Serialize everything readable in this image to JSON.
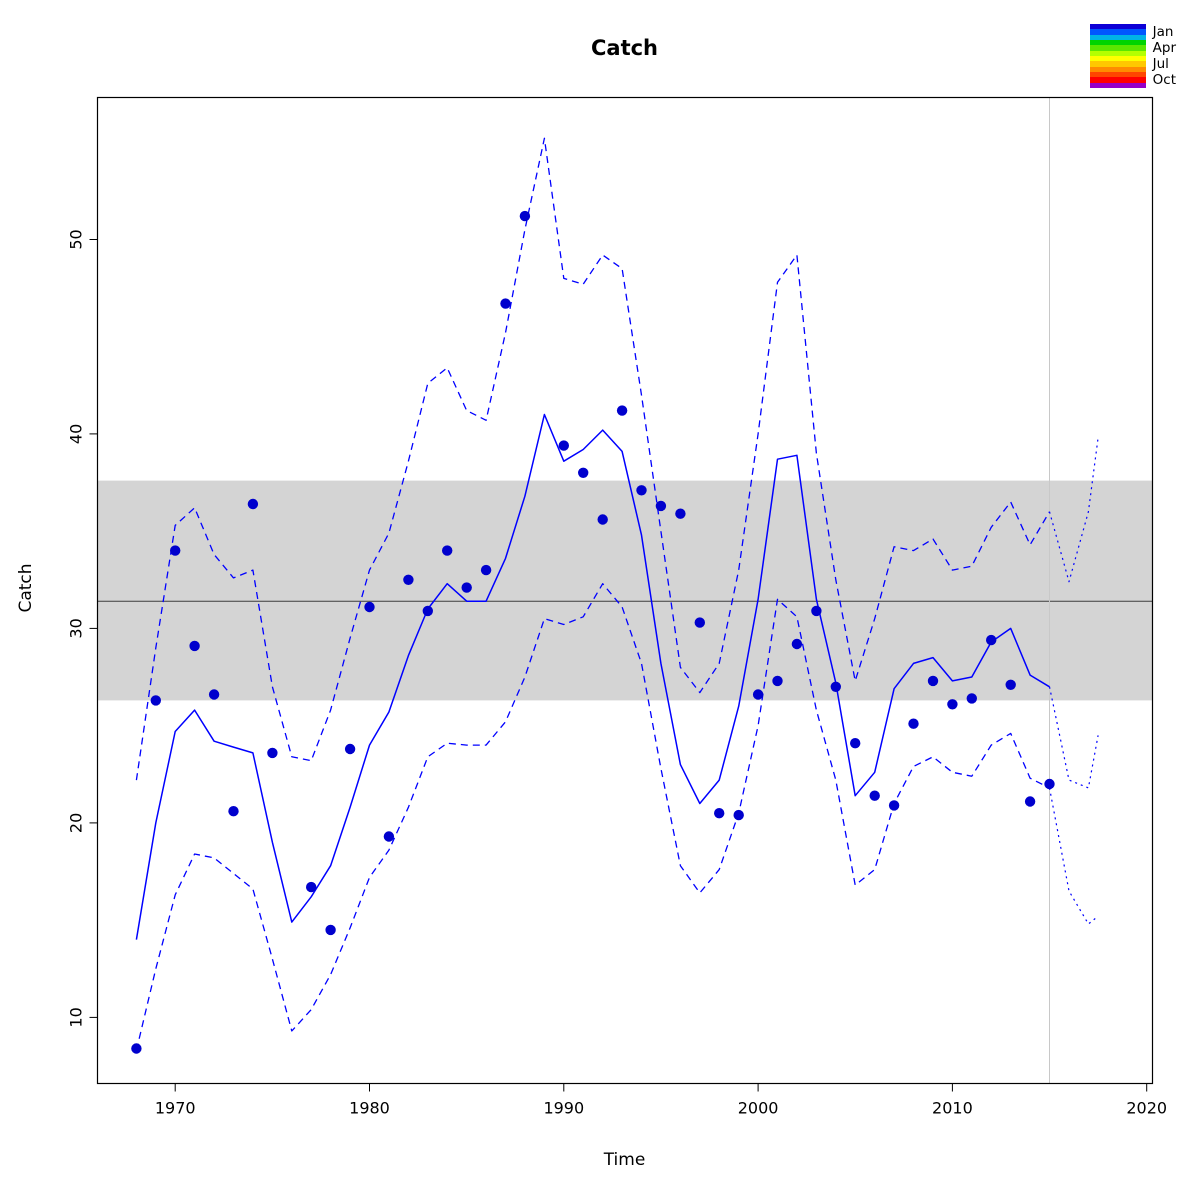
{
  "chart_data": {
    "type": "line",
    "title": "Catch",
    "xlabel": "Time",
    "ylabel": "Catch",
    "xlim": [
      1966.0,
      2020.3
    ],
    "ylim": [
      6.6,
      57.3
    ],
    "x_ticks": [
      1970,
      1980,
      1990,
      2000,
      2010,
      2020
    ],
    "y_ticks": [
      10,
      20,
      30,
      40,
      50
    ],
    "grid": false,
    "forecast_start": 2015,
    "reference_band": {
      "ymin": 26.3,
      "ymax": 37.6,
      "center": 31.4
    },
    "colors": {
      "line": "#0000ff",
      "points": "#0000cd",
      "band": "#d4d4d4",
      "band_line": "#3c3c3c",
      "divider": "#c8c8c8",
      "frame": "#000000"
    },
    "series": [
      {
        "name": "estimate",
        "style": "solid",
        "color": "#0000ff",
        "width": 1.5,
        "x": [
          1968,
          1969,
          1970,
          1971,
          1972,
          1973,
          1974,
          1975,
          1976,
          1977,
          1978,
          1979,
          1980,
          1981,
          1982,
          1983,
          1984,
          1985,
          1986,
          1987,
          1988,
          1989,
          1990,
          1991,
          1992,
          1993,
          1994,
          1995,
          1996,
          1997,
          1998,
          1999,
          2000,
          2001,
          2002,
          2003,
          2004,
          2005,
          2006,
          2007,
          2008,
          2009,
          2010,
          2011,
          2012,
          2013,
          2014,
          2015
        ],
        "y": [
          14.0,
          20.0,
          24.7,
          25.8,
          24.2,
          23.9,
          23.6,
          19.0,
          14.9,
          16.2,
          17.8,
          20.8,
          24.0,
          25.7,
          28.6,
          31.0,
          32.3,
          31.4,
          31.4,
          33.6,
          36.8,
          41.0,
          38.6,
          39.2,
          40.2,
          39.1,
          34.8,
          28.2,
          23.0,
          21.0,
          22.2,
          26.0,
          31.5,
          38.7,
          38.9,
          31.5,
          27.2,
          21.4,
          22.6,
          26.9,
          28.2,
          28.5,
          27.3,
          27.5,
          29.3,
          30.0,
          27.6,
          27.0
        ]
      },
      {
        "name": "upper-confidence",
        "style": "dashed",
        "color": "#0000ff",
        "width": 1.3,
        "x": [
          1968,
          1969,
          1970,
          1971,
          1972,
          1973,
          1974,
          1975,
          1976,
          1977,
          1978,
          1979,
          1980,
          1981,
          1982,
          1983,
          1984,
          1985,
          1986,
          1987,
          1988,
          1989,
          1990,
          1991,
          1992,
          1993,
          1994,
          1995,
          1996,
          1997,
          1998,
          1999,
          2000,
          2001,
          2002,
          2003,
          2004,
          2005,
          2006,
          2007,
          2008,
          2009,
          2010,
          2011,
          2012,
          2013,
          2014,
          2015
        ],
        "y": [
          22.2,
          29.0,
          35.3,
          36.2,
          33.8,
          32.6,
          33.0,
          27.0,
          23.4,
          23.2,
          25.8,
          29.5,
          33.0,
          34.9,
          38.6,
          42.6,
          43.4,
          41.2,
          40.7,
          45.2,
          50.5,
          55.2,
          48.0,
          47.7,
          49.2,
          48.5,
          42.0,
          35.0,
          28.0,
          26.7,
          28.2,
          33.0,
          40.0,
          47.8,
          49.2,
          39.0,
          32.5,
          27.3,
          30.5,
          34.2,
          34.0,
          34.6,
          33.0,
          33.2,
          35.2,
          36.5,
          34.3,
          36.0
        ]
      },
      {
        "name": "lower-confidence",
        "style": "dashed",
        "color": "#0000ff",
        "width": 1.3,
        "x": [
          1968,
          1969,
          1970,
          1971,
          1972,
          1973,
          1974,
          1975,
          1976,
          1977,
          1978,
          1979,
          1980,
          1981,
          1982,
          1983,
          1984,
          1985,
          1986,
          1987,
          1988,
          1989,
          1990,
          1991,
          1992,
          1993,
          1994,
          1995,
          1996,
          1997,
          1998,
          1999,
          2000,
          2001,
          2002,
          2003,
          2004,
          2005,
          2006,
          2007,
          2008,
          2009,
          2010,
          2011,
          2012,
          2013,
          2014,
          2015
        ],
        "y": [
          8.3,
          12.5,
          16.3,
          18.4,
          18.2,
          17.4,
          16.6,
          13.0,
          9.3,
          10.4,
          12.2,
          14.6,
          17.2,
          18.6,
          20.8,
          23.4,
          24.1,
          24.0,
          24.0,
          25.2,
          27.5,
          30.5,
          30.2,
          30.6,
          32.3,
          31.1,
          28.2,
          22.8,
          17.8,
          16.4,
          17.6,
          20.5,
          25.0,
          31.5,
          30.6,
          25.8,
          22.2,
          16.8,
          17.6,
          21.0,
          22.9,
          23.4,
          22.6,
          22.4,
          24.0,
          24.6,
          22.3,
          21.8
        ]
      },
      {
        "name": "forecast-upper",
        "style": "dotted",
        "color": "#0000ff",
        "width": 1.2,
        "x": [
          2015,
          2016,
          2017,
          2017.5
        ],
        "y": [
          36.0,
          32.4,
          36.0,
          39.8
        ]
      },
      {
        "name": "forecast-estimate",
        "style": "dotted",
        "color": "#0000ff",
        "width": 1.2,
        "x": [
          2015,
          2016,
          2017,
          2017.5
        ],
        "y": [
          27.0,
          22.2,
          21.8,
          24.5
        ]
      },
      {
        "name": "forecast-lower",
        "style": "dotted",
        "color": "#0000ff",
        "width": 1.2,
        "x": [
          2015,
          2016,
          2017,
          2017.5
        ],
        "y": [
          21.8,
          16.5,
          14.8,
          15.2
        ]
      }
    ],
    "observations": {
      "name": "observed-catch",
      "color": "#0000cd",
      "points": [
        [
          1968,
          8.4
        ],
        [
          1969,
          26.3
        ],
        [
          1970,
          34.0
        ],
        [
          1971,
          29.1
        ],
        [
          1972,
          26.6
        ],
        [
          1973,
          20.6
        ],
        [
          1974,
          36.4
        ],
        [
          1975,
          23.6
        ],
        [
          1977,
          16.7
        ],
        [
          1978,
          14.5
        ],
        [
          1979,
          23.8
        ],
        [
          1980,
          31.1
        ],
        [
          1981,
          19.3
        ],
        [
          1982,
          32.5
        ],
        [
          1983,
          30.9
        ],
        [
          1984,
          34.0
        ],
        [
          1985,
          32.1
        ],
        [
          1986,
          33.0
        ],
        [
          1987,
          46.7
        ],
        [
          1988,
          51.2
        ],
        [
          1990,
          39.4
        ],
        [
          1991,
          38.0
        ],
        [
          1992,
          35.6
        ],
        [
          1993,
          41.2
        ],
        [
          1994,
          37.1
        ],
        [
          1995,
          36.3
        ],
        [
          1996,
          35.9
        ],
        [
          1997,
          30.3
        ],
        [
          1998,
          20.5
        ],
        [
          1999,
          20.4
        ],
        [
          2000,
          26.6
        ],
        [
          2001,
          27.3
        ],
        [
          2002,
          29.2
        ],
        [
          2003,
          30.9
        ],
        [
          2004,
          27.0
        ],
        [
          2005,
          24.1
        ],
        [
          2006,
          21.4
        ],
        [
          2007,
          20.9
        ],
        [
          2008,
          25.1
        ],
        [
          2009,
          27.3
        ],
        [
          2010,
          26.1
        ],
        [
          2011,
          26.4
        ],
        [
          2012,
          29.4
        ],
        [
          2013,
          27.1
        ],
        [
          2014,
          21.1
        ],
        [
          2015,
          22.0
        ]
      ]
    },
    "legend": {
      "position": "top-right",
      "labels": [
        "Jan",
        "Apr",
        "Jul",
        "Oct"
      ],
      "month_colors": [
        "#0d00d6",
        "#0057ff",
        "#00b4e6",
        "#00d400",
        "#5ce600",
        "#b4ff00",
        "#ffff00",
        "#ffc800",
        "#ff8c00",
        "#ff4600",
        "#ff0000",
        "#9600c8"
      ]
    }
  }
}
